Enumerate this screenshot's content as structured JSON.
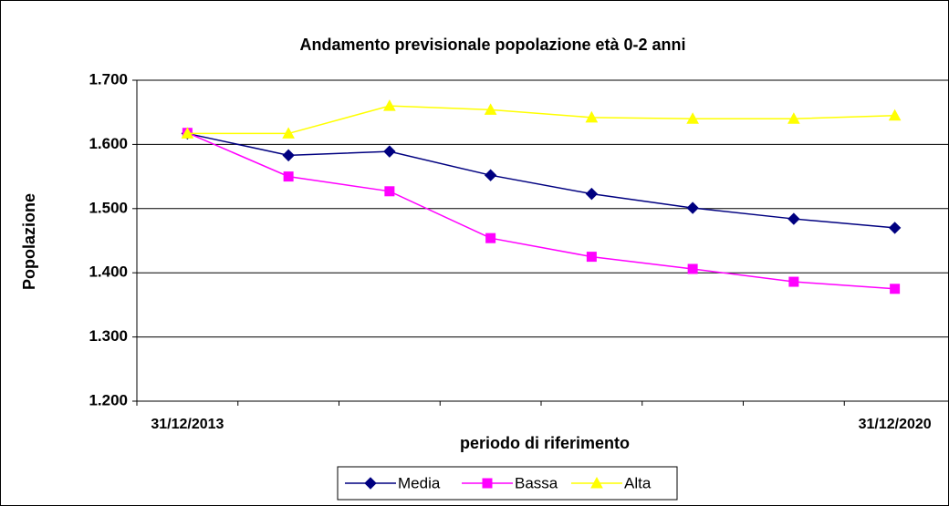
{
  "chart_data": {
    "type": "line",
    "title": "Andamento previsionale popolazione età 0-2 anni",
    "ylabel": "Popolazione",
    "xlabel": "periodo di riferimento",
    "categories": [
      "31/12/2013",
      null,
      null,
      null,
      null,
      null,
      null,
      "31/12/2020"
    ],
    "series": [
      {
        "name": "Media",
        "color": "#000080",
        "marker": "diamond",
        "values": [
          1617,
          1583,
          1589,
          1552,
          1523,
          1501,
          1484,
          1470
        ]
      },
      {
        "name": "Bassa",
        "color": "#ff00ff",
        "marker": "square",
        "values": [
          1618,
          1550,
          1527,
          1454,
          1425,
          1406,
          1386,
          1375
        ]
      },
      {
        "name": "Alta",
        "color": "#ffff00",
        "marker": "triangle",
        "values": [
          1617,
          1617,
          1660,
          1654,
          1642,
          1640,
          1640,
          1645
        ]
      }
    ],
    "ylim": [
      1200,
      1700
    ],
    "yticks": [
      {
        "value": 1200,
        "label": "1.200"
      },
      {
        "value": 1300,
        "label": "1.300"
      },
      {
        "value": 1400,
        "label": "1.400"
      },
      {
        "value": 1500,
        "label": "1.500"
      },
      {
        "value": 1600,
        "label": "1.600"
      },
      {
        "value": 1700,
        "label": "1.700"
      }
    ],
    "grid": true,
    "legend": "bottom"
  }
}
